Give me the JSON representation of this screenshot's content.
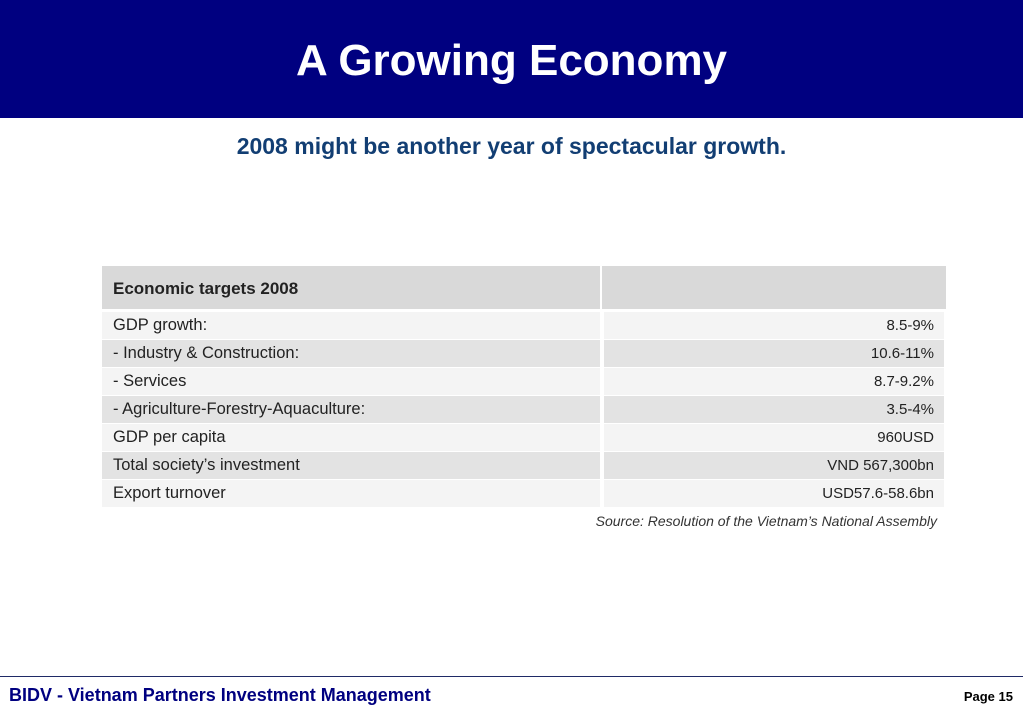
{
  "slide": {
    "title": "A Growing Economy",
    "subtitle": "2008 might be another year of spectacular growth."
  },
  "table": {
    "header": [
      "Economic targets 2008",
      ""
    ],
    "rows": [
      {
        "label": "GDP growth:",
        "value": "8.5-9%"
      },
      {
        "label": "- Industry & Construction:",
        "value": "10.6-11%"
      },
      {
        "label": "- Services",
        "value": "8.7-9.2%"
      },
      {
        "label": "- Agriculture-Forestry-Aquaculture:",
        "value": "3.5-4%"
      },
      {
        "label": "GDP per capita",
        "value": "960USD"
      },
      {
        "label": "Total society’s investment",
        "value": "VND 567,300bn"
      },
      {
        "label": "Export turnover",
        "value": "USD57.6-58.6bn"
      }
    ],
    "source": "Source: Resolution of the Vietnam’s National Assembly"
  },
  "footer": {
    "company": "BIDV - Vietnam Partners Investment Management",
    "page": "Page 15"
  },
  "colors": {
    "title_bar": "#000080",
    "subtitle": "#123e73",
    "footer_text": "#000080"
  }
}
